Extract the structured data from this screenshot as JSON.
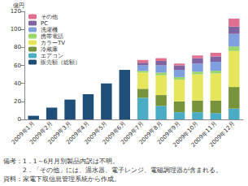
{
  "chart_data": {
    "type": "bar",
    "stacked": true,
    "y_axis_label": "億円",
    "categories": [
      "2009年1月",
      "2009年2月",
      "2009年3月",
      "2009年4月",
      "2009年5月",
      "2009年6月",
      "2009年7月",
      "2009年8月",
      "2009年9月",
      "2009年10月",
      "2009年11月",
      "2009年12月"
    ],
    "series": [
      {
        "name": "販売額（総額）",
        "color": "#1f4e79",
        "values": [
          4,
          13,
          22,
          28,
          40,
          55,
          null,
          null,
          null,
          null,
          null,
          null
        ]
      },
      {
        "name": "エアコン",
        "color": "#4bacc6",
        "values": [
          null,
          null,
          null,
          null,
          null,
          null,
          24,
          15,
          8,
          8,
          7,
          12
        ]
      },
      {
        "name": "冷蔵庫",
        "color": "#77933c",
        "values": [
          null,
          null,
          null,
          null,
          null,
          null,
          10,
          12,
          12,
          13,
          14,
          24
        ]
      },
      {
        "name": "カラーTV",
        "color": "#e6e65c",
        "values": [
          null,
          null,
          null,
          null,
          null,
          null,
          18,
          22,
          24,
          29,
          30,
          40
        ]
      },
      {
        "name": "携帯電話",
        "color": "#9bd66b",
        "values": [
          null,
          null,
          null,
          null,
          null,
          null,
          2,
          3,
          3,
          3,
          3,
          5
        ]
      },
      {
        "name": "洗濯機",
        "color": "#7f9fdf",
        "values": [
          null,
          null,
          null,
          null,
          null,
          null,
          6,
          8,
          8,
          9,
          10,
          14
        ]
      },
      {
        "name": "PC",
        "color": "#8064a2",
        "values": [
          null,
          null,
          null,
          null,
          null,
          null,
          3,
          5,
          5,
          6,
          6,
          8
        ]
      },
      {
        "name": "その他",
        "color": "#e07090",
        "values": [
          null,
          null,
          null,
          null,
          null,
          null,
          3,
          3,
          2,
          3,
          4,
          9
        ]
      }
    ],
    "ylim": [
      0,
      120
    ],
    "yticks": [
      0,
      20,
      40,
      60,
      80,
      100,
      120
    ],
    "grid": false,
    "legend": "top-left",
    "annotations": [
      "備考：1．1～6月月別製品内訳は不明。",
      "　　　2．「その他」には、温水器、電子レンジ、電磁調理器が含まれる。",
      "資料：家電下取信息管理系統から作成。"
    ]
  }
}
